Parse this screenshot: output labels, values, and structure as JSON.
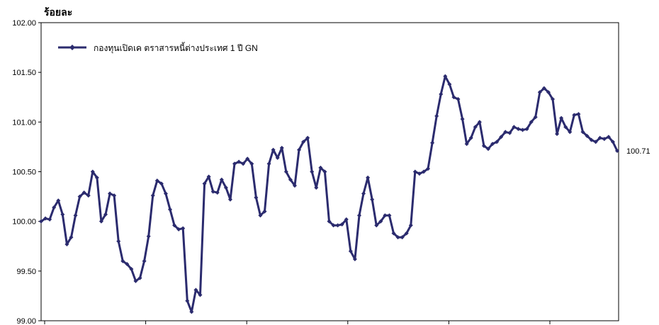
{
  "chart_data": {
    "type": "line",
    "title": "",
    "ylabel": "ร้อยละ",
    "xlabel": "",
    "ylim": [
      99.0,
      102.0
    ],
    "yticks": [
      99.0,
      99.5,
      100.0,
      100.5,
      101.0,
      101.5,
      102.0
    ],
    "ytick_labels": [
      "99.00",
      "99.50",
      "100.00",
      "100.50",
      "101.00",
      "101.50",
      "102.00"
    ],
    "x_count": 6,
    "grid": false,
    "legend_position": "top-left",
    "colors": {
      "series": "#2b2b6e",
      "axis": "#000000"
    },
    "series": [
      {
        "name": "กองทุนเปิดเค ตราสารหนี้ต่างประเทศ 1 ปี GN",
        "last_value_label": "100.71",
        "values": [
          100.0,
          100.03,
          100.02,
          100.14,
          100.21,
          100.07,
          99.77,
          99.84,
          100.06,
          100.25,
          100.29,
          100.26,
          100.5,
          100.44,
          100.0,
          100.07,
          100.28,
          100.26,
          99.8,
          99.6,
          99.57,
          99.52,
          99.4,
          99.43,
          99.6,
          99.85,
          100.26,
          100.41,
          100.38,
          100.28,
          100.12,
          99.96,
          99.92,
          99.93,
          99.2,
          99.09,
          99.31,
          99.26,
          100.38,
          100.45,
          100.3,
          100.29,
          100.42,
          100.34,
          100.22,
          100.58,
          100.6,
          100.58,
          100.63,
          100.58,
          100.24,
          100.06,
          100.1,
          100.58,
          100.72,
          100.64,
          100.74,
          100.5,
          100.42,
          100.36,
          100.72,
          100.8,
          100.84,
          100.5,
          100.34,
          100.54,
          100.5,
          100.0,
          99.96,
          99.96,
          99.97,
          100.02,
          99.7,
          99.62,
          100.06,
          100.28,
          100.44,
          100.22,
          99.96,
          100.0,
          100.06,
          100.06,
          99.88,
          99.84,
          99.84,
          99.88,
          99.96,
          100.5,
          100.48,
          100.5,
          100.53,
          100.79,
          101.06,
          101.28,
          101.46,
          101.38,
          101.25,
          101.23,
          101.03,
          100.78,
          100.84,
          100.95,
          101.0,
          100.76,
          100.73,
          100.78,
          100.8,
          100.85,
          100.9,
          100.89,
          100.95,
          100.93,
          100.92,
          100.93,
          101.0,
          101.05,
          101.3,
          101.34,
          101.3,
          101.23,
          100.88,
          101.04,
          100.95,
          100.9,
          101.07,
          101.08,
          100.9,
          100.86,
          100.82,
          100.8,
          100.84,
          100.83,
          100.85,
          100.8,
          100.71
        ]
      }
    ]
  }
}
